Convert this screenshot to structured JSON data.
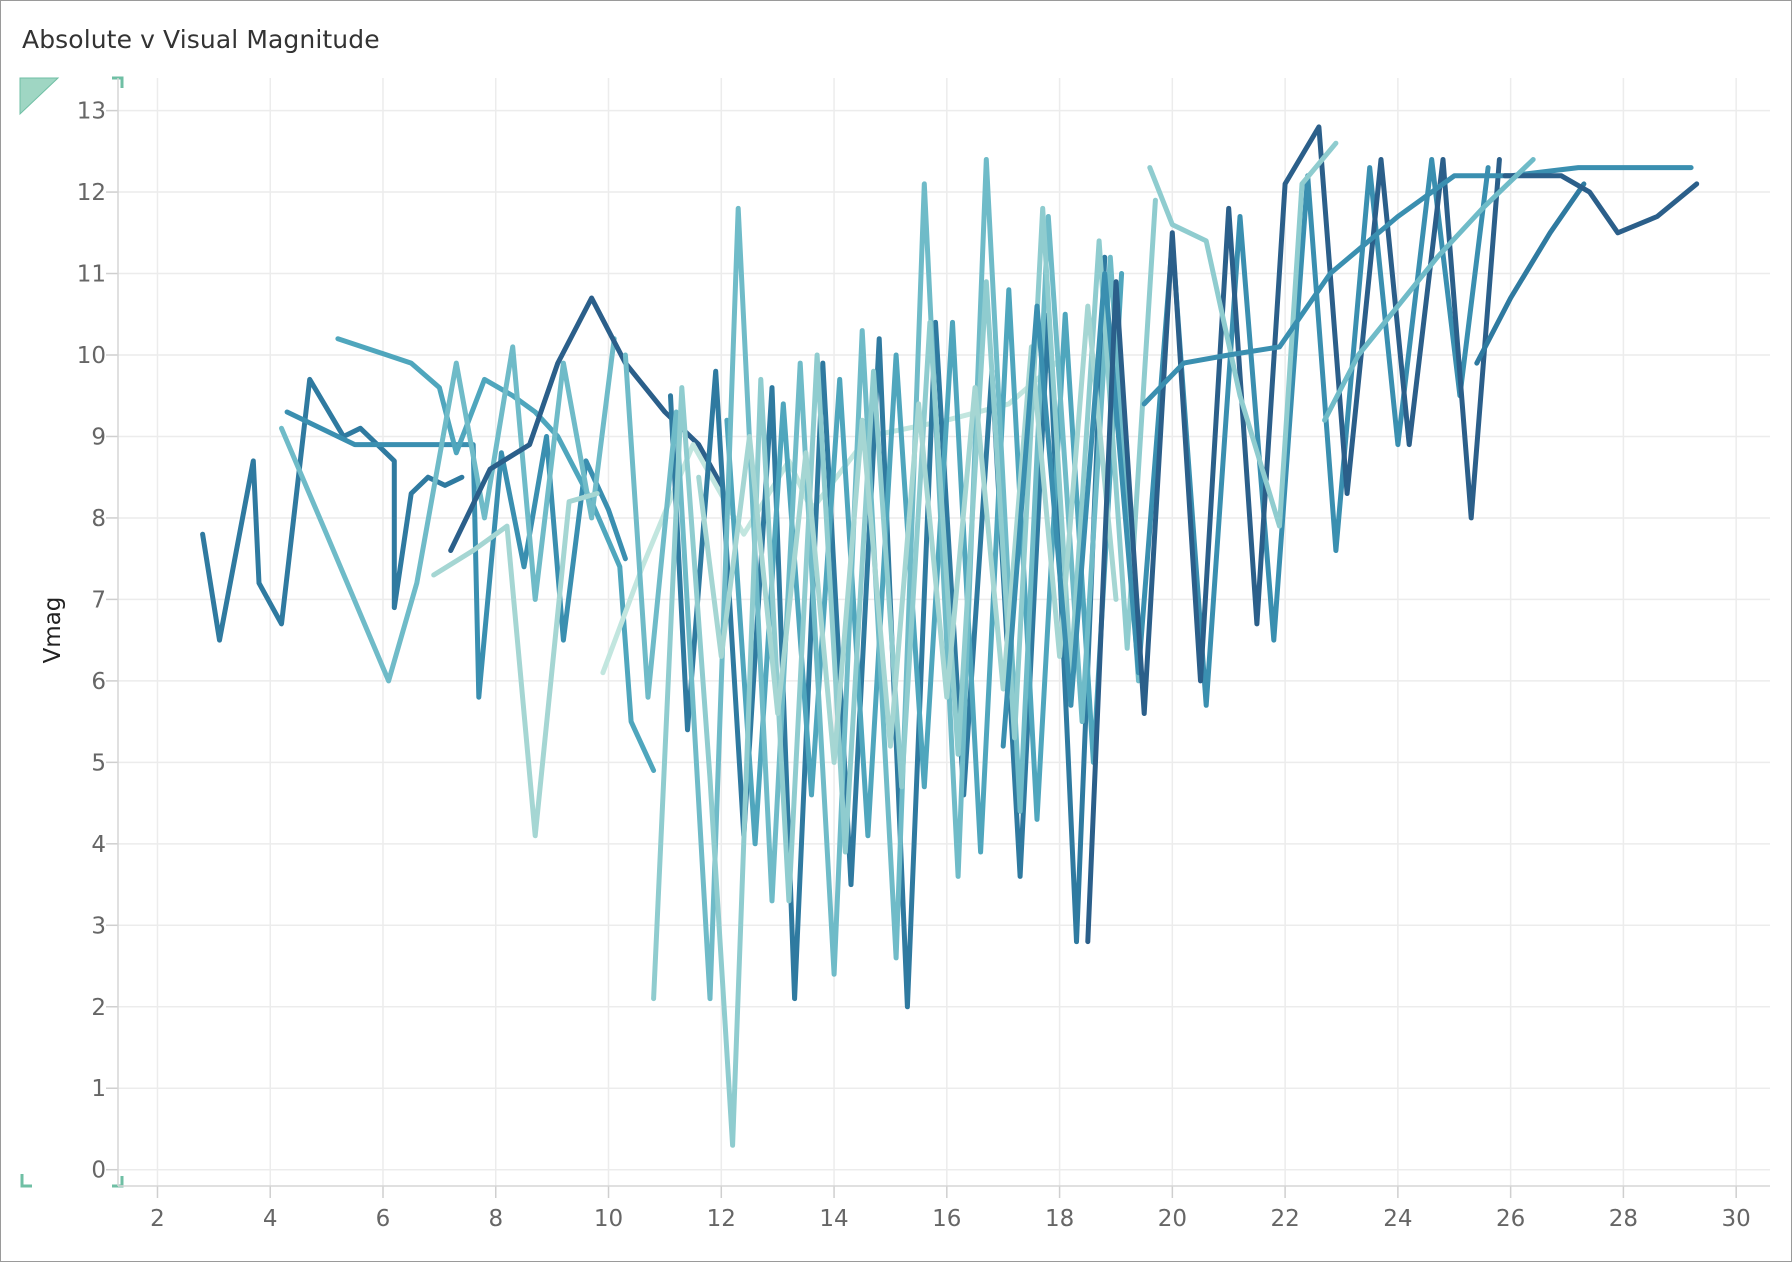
{
  "title": "Absolute v Visual Magnitude",
  "chart_data": {
    "type": "line",
    "title": "Absolute v Visual Magnitude",
    "xlabel": "",
    "ylabel": "Vmag",
    "xlim": [
      1.3,
      30.6
    ],
    "ylim": [
      -0.2,
      13.4
    ],
    "xticks": [
      2,
      4,
      6,
      8,
      10,
      12,
      14,
      16,
      18,
      20,
      22,
      24,
      26,
      28,
      30
    ],
    "yticks": [
      0,
      1,
      2,
      3,
      4,
      5,
      6,
      7,
      8,
      9,
      10,
      11,
      12,
      13
    ],
    "grid": true,
    "legend": "none",
    "palette": [
      "#2b5f8a",
      "#2f7aa0",
      "#3a8fb0",
      "#4fa6bd",
      "#6fbbc8",
      "#8fcccf",
      "#a5d6d3",
      "#c2e6df"
    ],
    "series": [
      {
        "color": "#2f7aa0",
        "x": [
          2.8,
          3.1,
          3.7,
          3.8,
          4.2,
          4.7,
          5.3,
          5.6,
          6.2,
          6.2,
          6.5,
          6.8,
          7.1,
          7.4
        ],
        "y": [
          7.8,
          6.5,
          8.7,
          7.2,
          6.7,
          9.7,
          9.0,
          9.1,
          8.7,
          6.9,
          8.3,
          8.5,
          8.4,
          8.5
        ]
      },
      {
        "color": "#3a8fb0",
        "x": [
          4.3,
          5.5,
          6.0,
          6.5,
          7.0,
          7.6,
          7.7,
          8.1,
          8.5,
          8.9,
          9.2,
          9.6,
          10.0,
          10.3
        ],
        "y": [
          9.3,
          8.9,
          8.9,
          8.9,
          8.9,
          8.9,
          5.8,
          8.8,
          7.4,
          9.0,
          6.5,
          8.7,
          8.1,
          7.5
        ]
      },
      {
        "color": "#4fa6bd",
        "x": [
          5.2,
          6.5,
          7.0,
          7.3,
          7.8,
          8.3,
          8.7,
          9.1,
          9.7,
          10.2,
          10.4,
          10.8
        ],
        "y": [
          10.2,
          9.9,
          9.6,
          8.8,
          9.7,
          9.5,
          9.3,
          9.0,
          8.2,
          7.4,
          5.5,
          4.9
        ]
      },
      {
        "color": "#6fbbc8",
        "x": [
          4.2,
          5.0,
          6.1,
          6.6,
          7.3,
          7.8,
          8.3,
          8.7,
          9.2,
          9.7,
          10.1
        ],
        "y": [
          9.1,
          7.8,
          6.0,
          7.2,
          9.9,
          8.0,
          10.1,
          7.0,
          9.9,
          8.0,
          10.2
        ]
      },
      {
        "color": "#a5d6d3",
        "x": [
          6.9,
          7.6,
          8.2,
          8.7,
          9.3,
          9.8
        ],
        "y": [
          7.3,
          7.6,
          7.9,
          4.1,
          8.2,
          8.3
        ]
      },
      {
        "color": "#2b5f8a",
        "x": [
          7.2,
          7.9,
          8.6,
          9.1,
          9.7,
          10.3,
          11.0,
          11.6,
          12.0
        ],
        "y": [
          7.6,
          8.6,
          8.9,
          9.9,
          10.7,
          9.9,
          9.3,
          8.9,
          8.4
        ]
      },
      {
        "color": "#c2e6df",
        "x": [
          9.9,
          10.6,
          11.5,
          12.4,
          13.2,
          13.6,
          14.6,
          16.0,
          17.1,
          18.1
        ],
        "y": [
          6.1,
          7.4,
          8.9,
          7.8,
          8.7,
          8.1,
          9.0,
          9.2,
          9.4,
          10.0
        ]
      },
      {
        "color": "#2f7aa0",
        "x": [
          11.1,
          11.4,
          11.9,
          12.4,
          12.9,
          13.3,
          13.8,
          14.3,
          14.8,
          15.3,
          15.8,
          16.3,
          16.8,
          17.3,
          17.8,
          18.3,
          18.8
        ],
        "y": [
          9.5,
          5.4,
          9.8,
          4.1,
          9.6,
          2.1,
          9.9,
          3.5,
          10.2,
          2.0,
          10.4,
          4.6,
          9.8,
          3.6,
          10.5,
          2.8,
          11.2
        ]
      },
      {
        "color": "#4fa6bd",
        "x": [
          12.1,
          12.6,
          13.1,
          13.6,
          14.1,
          14.6,
          15.1,
          15.6,
          16.1,
          16.6,
          17.1,
          17.6,
          18.1,
          18.6,
          19.1
        ],
        "y": [
          9.2,
          4.0,
          9.4,
          4.6,
          9.7,
          4.1,
          10.0,
          4.7,
          10.4,
          3.9,
          10.8,
          4.3,
          10.5,
          5.0,
          11.0
        ]
      },
      {
        "color": "#6fbbc8",
        "x": [
          10.3,
          10.7,
          11.2,
          11.8,
          12.3,
          12.9,
          13.4,
          14.0,
          14.5,
          15.1,
          15.6,
          16.2,
          16.7,
          17.3,
          17.8,
          18.4,
          18.9,
          19.4
        ],
        "y": [
          10.0,
          5.8,
          9.3,
          2.1,
          11.8,
          3.3,
          9.9,
          2.4,
          10.3,
          2.6,
          12.1,
          3.6,
          12.4,
          4.4,
          11.7,
          5.5,
          11.2,
          6.0
        ]
      },
      {
        "color": "#8fcccf",
        "x": [
          10.8,
          11.3,
          11.8,
          12.2,
          12.7,
          13.2,
          13.7,
          14.2,
          14.7,
          15.2,
          15.7,
          16.2,
          16.7,
          17.2,
          17.7,
          18.2,
          18.7,
          19.2,
          19.7
        ],
        "y": [
          2.1,
          9.6,
          4.8,
          0.3,
          9.7,
          3.3,
          10.0,
          3.9,
          9.8,
          4.7,
          10.4,
          5.1,
          10.9,
          5.3,
          11.8,
          6.1,
          11.4,
          6.4,
          11.9
        ]
      },
      {
        "color": "#a5d6d3",
        "x": [
          11.6,
          12.0,
          12.5,
          13.0,
          13.5,
          14.0,
          14.5,
          15.0,
          15.5,
          16.0,
          16.5,
          17.0,
          17.5,
          18.0,
          18.5,
          19.0
        ],
        "y": [
          8.5,
          6.3,
          9.0,
          5.6,
          8.8,
          5.0,
          9.2,
          5.2,
          9.4,
          5.8,
          9.6,
          5.9,
          10.1,
          6.3,
          10.6,
          7.0
        ]
      },
      {
        "color": "#3a8fb0",
        "x": [
          17.0,
          17.6,
          18.2,
          18.8,
          19.4,
          20.0,
          20.6,
          21.2,
          21.8,
          22.4,
          22.9,
          23.5,
          24.0,
          24.6,
          25.1,
          25.6
        ],
        "y": [
          5.2,
          10.6,
          5.7,
          11.0,
          6.1,
          11.4,
          5.7,
          11.7,
          6.5,
          12.2,
          7.6,
          12.3,
          8.9,
          12.4,
          9.5,
          12.3
        ]
      },
      {
        "color": "#2b5f8a",
        "x": [
          18.5,
          19.0,
          19.5,
          20.0,
          20.5,
          21.0,
          21.5,
          22.0,
          22.6,
          23.1,
          23.7,
          24.2,
          24.8,
          25.3,
          25.8
        ],
        "y": [
          2.8,
          10.9,
          5.6,
          11.5,
          6.0,
          11.8,
          6.7,
          12.1,
          12.8,
          8.3,
          12.4,
          8.9,
          12.4,
          8.0,
          12.4
        ]
      },
      {
        "color": "#8fcccf",
        "x": [
          19.6,
          20.0,
          20.6,
          21.2,
          21.9,
          22.3,
          22.9
        ],
        "y": [
          12.3,
          11.6,
          11.4,
          9.5,
          7.9,
          12.1,
          12.6
        ]
      },
      {
        "color": "#3a8fb0",
        "x": [
          19.5,
          20.2,
          21.0,
          21.9,
          22.8,
          24.0,
          25.0,
          26.0,
          27.2,
          29.2
        ],
        "y": [
          9.4,
          9.9,
          10.0,
          10.1,
          11.0,
          11.7,
          12.2,
          12.2,
          12.3,
          12.3
        ]
      },
      {
        "color": "#2f7aa0",
        "x": [
          25.4,
          26.0,
          26.7,
          27.3
        ],
        "y": [
          9.9,
          10.7,
          11.5,
          12.1
        ]
      },
      {
        "color": "#2b5f8a",
        "x": [
          25.9,
          26.9,
          27.4,
          27.9,
          28.6,
          29.3
        ],
        "y": [
          12.2,
          12.2,
          12.0,
          11.5,
          11.7,
          12.1
        ]
      },
      {
        "color": "#6fbbc8",
        "x": [
          22.7,
          23.3,
          24.0,
          24.7,
          25.5,
          26.4
        ],
        "y": [
          9.2,
          10.0,
          10.6,
          11.2,
          11.8,
          12.4
        ]
      }
    ]
  }
}
